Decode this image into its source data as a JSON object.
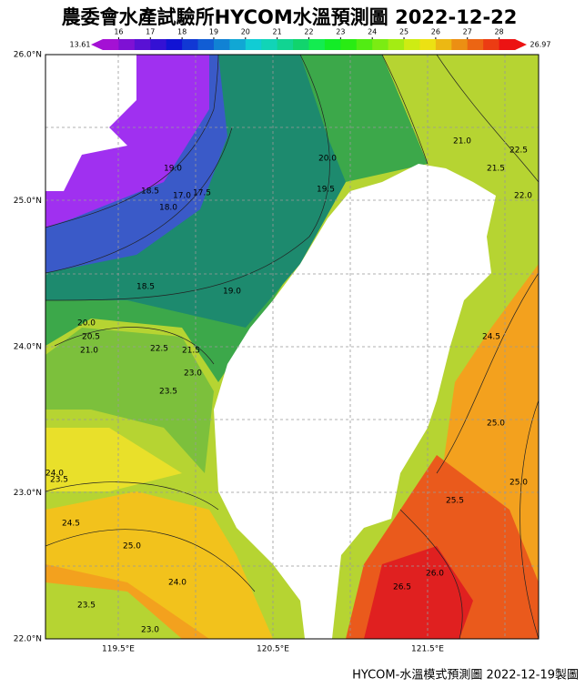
{
  "title": "農委會水產試驗所HYCOM水溫預測圖 2022-12-22",
  "colorbar": {
    "min_label": "13.61",
    "max_label": "26.97",
    "range": [
      15.5,
      28.5
    ],
    "ticks": [
      16,
      17,
      18,
      19,
      20,
      21,
      22,
      23,
      24,
      25,
      26,
      27,
      28
    ]
  },
  "lat_labels": [
    "26.0°N",
    "25.0°N",
    "24.0°N",
    "23.0°N",
    "22.0°N"
  ],
  "lon_labels": [
    "119.5°E",
    "120.5°E",
    "121.5°E"
  ],
  "contour_labels": [
    "19.0",
    "18.5",
    "17.0",
    "17.5",
    "18.0",
    "20.0",
    "19.5",
    "21.0",
    "21.5",
    "22.5",
    "22.0",
    "18.5",
    "19.0",
    "20.0",
    "20.5",
    "21.0",
    "22.5",
    "21.5",
    "23.0",
    "23.5",
    "24.0",
    "23.5",
    "24.5",
    "25.0",
    "24.0",
    "23.5",
    "23.0",
    "24.5",
    "25.0",
    "25.0",
    "25.5",
    "26.0",
    "26.5"
  ],
  "footer": "HYCOM-水溫模式預測圖 2022-12-19製圖"
}
